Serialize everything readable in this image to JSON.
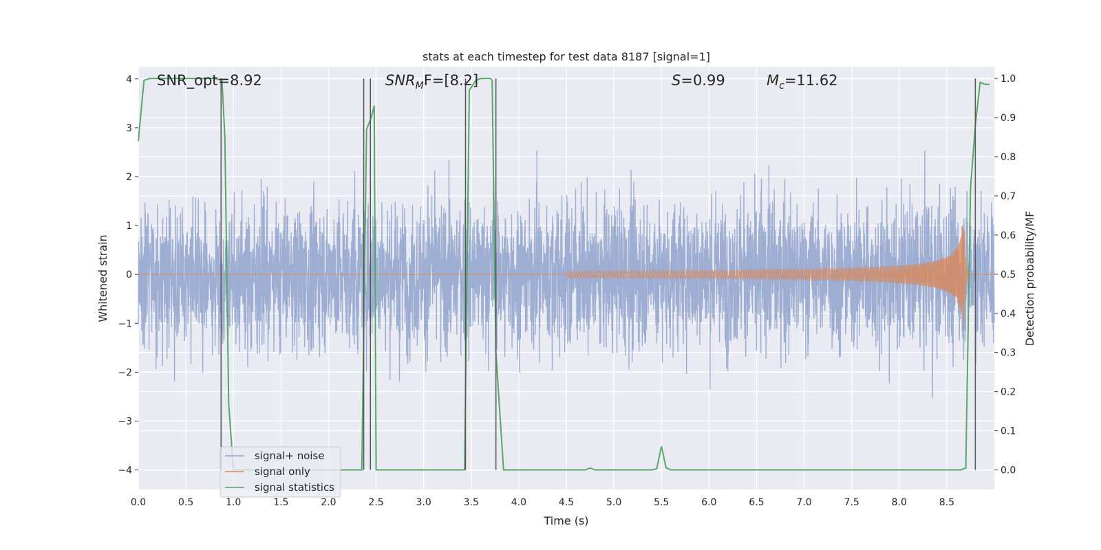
{
  "chart_data": {
    "type": "line",
    "title": "stats at each timestep for test data 8187 [signal=1]",
    "xlabel": "Time (s)",
    "ylabel_left": "Whitened strain",
    "ylabel_right": "Detection probability/MF",
    "xlim": [
      0.0,
      9.0
    ],
    "ylim_left": [
      -4.4,
      4.25
    ],
    "ylim_right": [
      -0.05,
      1.03
    ],
    "x_ticks": [
      0.0,
      0.5,
      1.0,
      1.5,
      2.0,
      2.5,
      3.0,
      3.5,
      4.0,
      4.5,
      5.0,
      5.5,
      6.0,
      6.5,
      7.0,
      7.5,
      8.0,
      8.5
    ],
    "x_tick_labels": [
      "0.0",
      "0.5",
      "1.0",
      "1.5",
      "2.0",
      "2.5",
      "3.0",
      "3.5",
      "4.0",
      "4.5",
      "5.0",
      "5.5",
      "6.0",
      "6.5",
      "7.0",
      "7.5",
      "8.0",
      "8.5"
    ],
    "y_left_ticks": [
      -4,
      -3,
      -2,
      -1,
      0,
      1,
      2,
      3,
      4
    ],
    "y_left_tick_labels": [
      "−4",
      "−3",
      "−2",
      "−1",
      "0",
      "1",
      "2",
      "3",
      "4"
    ],
    "y_right_ticks": [
      0.0,
      0.1,
      0.2,
      0.3,
      0.4,
      0.5,
      0.6,
      0.7,
      0.8,
      0.9,
      1.0
    ],
    "y_right_tick_labels": [
      "0.0",
      "0.1",
      "0.2",
      "0.3",
      "0.4",
      "0.5",
      "0.6",
      "0.7",
      "0.8",
      "0.9",
      "1.0"
    ],
    "grid": true,
    "legend_position": "lower-left",
    "annotations": {
      "snr_opt": "SNR_opt=8.92",
      "snr_mf_label": "SNR",
      "snr_mf_sub": "M",
      "snr_mf_rest": "F=[8.2]",
      "s_label": "S",
      "s_value": "=0.99",
      "mc_label": "M",
      "mc_sub": "c",
      "mc_value": "=11.62"
    },
    "series": [
      {
        "name": "signal+ noise",
        "color": "#8fa3cc",
        "axis": "left",
        "description_values": "whitened noisy strain, roughly Gaussian with std ~1.1 over 0–9 s"
      },
      {
        "name": "signal only",
        "color": "#dd8452",
        "axis": "left",
        "chirp": {
          "t_start": 4.5,
          "t_merger": 8.68,
          "peak_amplitude": 1.3
        }
      },
      {
        "name": "signal statistics",
        "color": "#55a868",
        "axis": "right",
        "x": [
          0.0,
          0.06,
          0.12,
          0.3,
          0.5,
          0.7,
          0.8,
          0.88,
          0.91,
          0.95,
          1.0,
          1.1,
          1.5,
          2.0,
          2.3,
          2.35,
          2.4,
          2.45,
          2.48,
          2.5,
          2.52,
          2.6,
          3.0,
          3.4,
          3.43,
          3.48,
          3.55,
          3.6,
          3.7,
          3.72,
          3.76,
          3.8,
          3.84,
          3.9,
          4.5,
          4.7,
          4.75,
          4.8,
          5.0,
          5.4,
          5.45,
          5.5,
          5.55,
          5.6,
          5.7,
          6.0,
          7.0,
          8.0,
          8.65,
          8.7,
          8.75,
          8.8,
          8.85,
          8.9,
          8.95
        ],
        "y": [
          0.84,
          0.995,
          1.0,
          1.0,
          1.0,
          1.0,
          1.0,
          0.995,
          0.85,
          0.17,
          0.0,
          0.0,
          0.0,
          0.0,
          0.0,
          0.0,
          0.87,
          0.9,
          0.93,
          0.0,
          0.0,
          0.0,
          0.0,
          0.0,
          0.0,
          0.97,
          0.995,
          1.0,
          1.0,
          0.995,
          0.3,
          0.15,
          0.0,
          0.0,
          0.0,
          0.0,
          0.005,
          0.0,
          0.0,
          0.0,
          0.003,
          0.06,
          0.005,
          0.0,
          0.0,
          0.0,
          0.0,
          0.0,
          0.0,
          0.005,
          0.72,
          0.88,
          0.99,
          0.985,
          0.985
        ]
      }
    ],
    "vertical_markers": {
      "color": "#555555",
      "x": [
        0.87,
        2.37,
        2.44,
        3.44,
        3.76,
        8.8
      ]
    }
  }
}
